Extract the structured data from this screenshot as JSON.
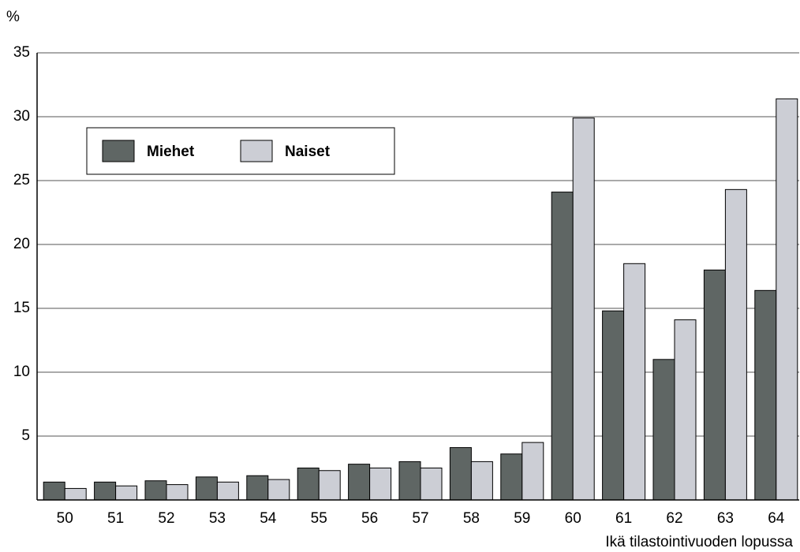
{
  "chart_data": {
    "type": "bar",
    "y_label": "%",
    "x_label": "Ikä tilastointivuoden lopussa",
    "categories": [
      "50",
      "51",
      "52",
      "53",
      "54",
      "55",
      "56",
      "57",
      "58",
      "59",
      "60",
      "61",
      "62",
      "63",
      "64"
    ],
    "series": [
      {
        "name": "Miehet",
        "color": "#5f6664",
        "values": [
          1.4,
          1.4,
          1.5,
          1.8,
          1.9,
          2.5,
          2.8,
          3.0,
          4.1,
          3.6,
          24.1,
          14.8,
          11.0,
          18.0,
          16.4
        ]
      },
      {
        "name": "Naiset",
        "color": "#ccced5",
        "values": [
          0.9,
          1.1,
          1.2,
          1.4,
          1.6,
          2.3,
          2.5,
          2.5,
          3.0,
          4.5,
          29.9,
          18.5,
          14.1,
          24.3,
          31.4
        ]
      }
    ],
    "ylim": [
      0,
      35
    ],
    "yticks": [
      5,
      10,
      15,
      20,
      25,
      30,
      35
    ],
    "grid": true,
    "legend": "upper left"
  }
}
